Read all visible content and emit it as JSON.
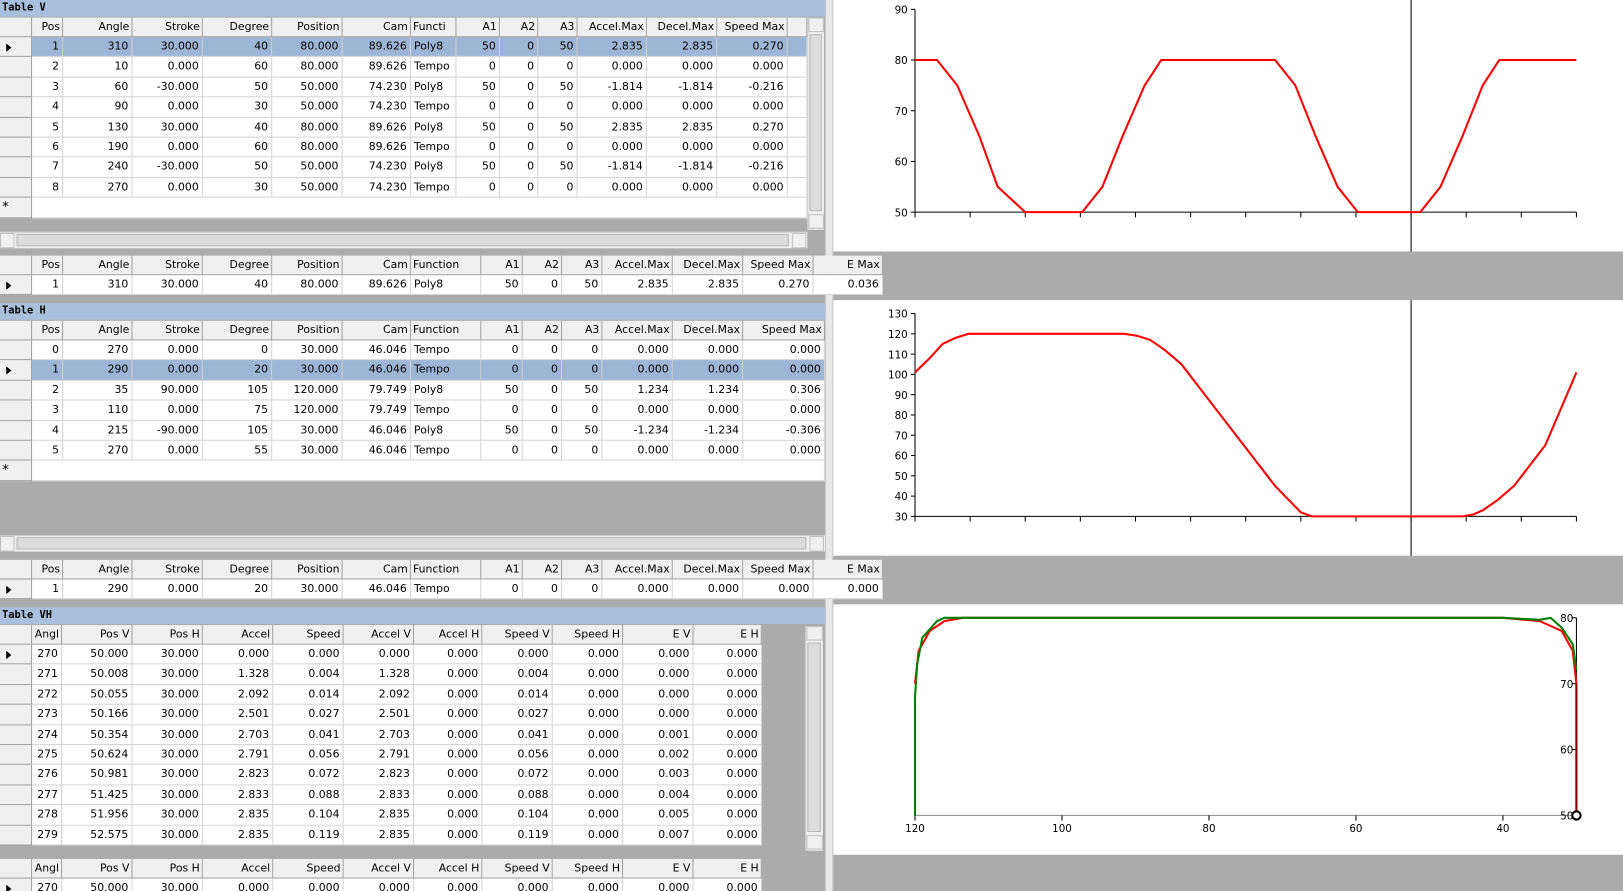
{
  "tables": {
    "v": {
      "title": "Table V",
      "new_row": "*",
      "current_row": 0,
      "highlight": true,
      "columns": [
        "Pos",
        "Angle",
        "Stroke",
        "Degree",
        "Position",
        "Cam",
        "Functi",
        "A1",
        "A2",
        "A3",
        "Accel.Max",
        "Decel.Max",
        "Speed Max"
      ],
      "rows": [
        [
          "1",
          "310",
          "30.000",
          "40",
          "80.000",
          "89.626",
          "Poly8",
          "50",
          "0",
          "50",
          "2.835",
          "2.835",
          "0.270"
        ],
        [
          "2",
          "10",
          "0.000",
          "60",
          "80.000",
          "89.626",
          "Tempo",
          "0",
          "0",
          "0",
          "0.000",
          "0.000",
          "0.000"
        ],
        [
          "3",
          "60",
          "-30.000",
          "50",
          "50.000",
          "74.230",
          "Poly8",
          "50",
          "0",
          "50",
          "-1.814",
          "-1.814",
          "-0.216"
        ],
        [
          "4",
          "90",
          "0.000",
          "30",
          "50.000",
          "74.230",
          "Tempo",
          "0",
          "0",
          "0",
          "0.000",
          "0.000",
          "0.000"
        ],
        [
          "5",
          "130",
          "30.000",
          "40",
          "80.000",
          "89.626",
          "Poly8",
          "50",
          "0",
          "50",
          "2.835",
          "2.835",
          "0.270"
        ],
        [
          "6",
          "190",
          "0.000",
          "60",
          "80.000",
          "89.626",
          "Tempo",
          "0",
          "0",
          "0",
          "0.000",
          "0.000",
          "0.000"
        ],
        [
          "7",
          "240",
          "-30.000",
          "50",
          "50.000",
          "74.230",
          "Poly8",
          "50",
          "0",
          "50",
          "-1.814",
          "-1.814",
          "-0.216"
        ],
        [
          "8",
          "270",
          "0.000",
          "30",
          "50.000",
          "74.230",
          "Tempo",
          "0",
          "0",
          "0",
          "0.000",
          "0.000",
          "0.000"
        ]
      ]
    },
    "v_summary": {
      "current_row": 0,
      "columns": [
        "Pos",
        "Angle",
        "Stroke",
        "Degree",
        "Position",
        "Cam",
        "Function",
        "A1",
        "A2",
        "A3",
        "Accel.Max",
        "Decel.Max",
        "Speed Max",
        "E Max"
      ],
      "rows": [
        [
          "1",
          "310",
          "30.000",
          "40",
          "80.000",
          "89.626",
          "Poly8",
          "50",
          "0",
          "50",
          "2.835",
          "2.835",
          "0.270",
          "0.036"
        ]
      ]
    },
    "h": {
      "title": "Table H",
      "new_row": "*",
      "current_row": 1,
      "highlight": true,
      "columns": [
        "Pos",
        "Angle",
        "Stroke",
        "Degree",
        "Position",
        "Cam",
        "Function",
        "A1",
        "A2",
        "A3",
        "Accel.Max",
        "Decel.Max",
        "Speed Max"
      ],
      "rows": [
        [
          "0",
          "270",
          "0.000",
          "0",
          "30.000",
          "46.046",
          "Tempo",
          "0",
          "0",
          "0",
          "0.000",
          "0.000",
          "0.000"
        ],
        [
          "1",
          "290",
          "0.000",
          "20",
          "30.000",
          "46.046",
          "Tempo",
          "0",
          "0",
          "0",
          "0.000",
          "0.000",
          "0.000"
        ],
        [
          "2",
          "35",
          "90.000",
          "105",
          "120.000",
          "79.749",
          "Poly8",
          "50",
          "0",
          "50",
          "1.234",
          "1.234",
          "0.306"
        ],
        [
          "3",
          "110",
          "0.000",
          "75",
          "120.000",
          "79.749",
          "Tempo",
          "0",
          "0",
          "0",
          "0.000",
          "0.000",
          "0.000"
        ],
        [
          "4",
          "215",
          "-90.000",
          "105",
          "30.000",
          "46.046",
          "Poly8",
          "50",
          "0",
          "50",
          "-1.234",
          "-1.234",
          "-0.306"
        ],
        [
          "5",
          "270",
          "0.000",
          "55",
          "30.000",
          "46.046",
          "Tempo",
          "0",
          "0",
          "0",
          "0.000",
          "0.000",
          "0.000"
        ]
      ]
    },
    "h_summary": {
      "current_row": 0,
      "columns": [
        "Pos",
        "Angle",
        "Stroke",
        "Degree",
        "Position",
        "Cam",
        "Function",
        "A1",
        "A2",
        "A3",
        "Accel.Max",
        "Decel.Max",
        "Speed Max",
        "E Max"
      ],
      "rows": [
        [
          "1",
          "290",
          "0.000",
          "20",
          "30.000",
          "46.046",
          "Tempo",
          "0",
          "0",
          "0",
          "0.000",
          "0.000",
          "0.000",
          "0.000"
        ]
      ]
    },
    "vh": {
      "title": "Table VH",
      "current_row": 0,
      "highlight": false,
      "columns": [
        "Angl",
        "Pos V",
        "Pos H",
        "Accel",
        "Speed",
        "Accel V",
        "Accel H",
        "Speed V",
        "Speed H",
        "E V",
        "E H"
      ],
      "rows": [
        [
          "270",
          "50.000",
          "30.000",
          "0.000",
          "0.000",
          "0.000",
          "0.000",
          "0.000",
          "0.000",
          "0.000",
          "0.000"
        ],
        [
          "271",
          "50.008",
          "30.000",
          "1.328",
          "0.004",
          "1.328",
          "0.000",
          "0.004",
          "0.000",
          "0.000",
          "0.000"
        ],
        [
          "272",
          "50.055",
          "30.000",
          "2.092",
          "0.014",
          "2.092",
          "0.000",
          "0.014",
          "0.000",
          "0.000",
          "0.000"
        ],
        [
          "273",
          "50.166",
          "30.000",
          "2.501",
          "0.027",
          "2.501",
          "0.000",
          "0.027",
          "0.000",
          "0.000",
          "0.000"
        ],
        [
          "274",
          "50.354",
          "30.000",
          "2.703",
          "0.041",
          "2.703",
          "0.000",
          "0.041",
          "0.000",
          "0.001",
          "0.000"
        ],
        [
          "275",
          "50.624",
          "30.000",
          "2.791",
          "0.056",
          "2.791",
          "0.000",
          "0.056",
          "0.000",
          "0.002",
          "0.000"
        ],
        [
          "276",
          "50.981",
          "30.000",
          "2.823",
          "0.072",
          "2.823",
          "0.000",
          "0.072",
          "0.000",
          "0.003",
          "0.000"
        ],
        [
          "277",
          "51.425",
          "30.000",
          "2.833",
          "0.088",
          "2.833",
          "0.000",
          "0.088",
          "0.000",
          "0.004",
          "0.000"
        ],
        [
          "278",
          "51.956",
          "30.000",
          "2.835",
          "0.104",
          "2.835",
          "0.000",
          "0.104",
          "0.000",
          "0.005",
          "0.000"
        ],
        [
          "279",
          "52.575",
          "30.000",
          "2.835",
          "0.119",
          "2.835",
          "0.000",
          "0.119",
          "0.000",
          "0.007",
          "0.000"
        ]
      ]
    },
    "vh_summary": {
      "current_row": 0,
      "columns": [
        "Angl",
        "Pos V",
        "Pos H",
        "Accel",
        "Speed",
        "Accel V",
        "Accel H",
        "Speed V",
        "Speed H",
        "E V",
        "E H"
      ],
      "rows": [
        [
          "270",
          "50.000",
          "30.000",
          "0.000",
          "0.000",
          "0.000",
          "0.000",
          "0.000",
          "0.000",
          "0.000",
          "0.000"
        ]
      ]
    }
  },
  "chart_data": [
    {
      "type": "line",
      "xlim": [
        0,
        360
      ],
      "xticks": [
        0,
        30,
        60,
        90,
        120,
        150,
        180,
        210,
        240,
        270,
        300,
        330,
        360
      ],
      "xtick_labels": false,
      "ylim": [
        50,
        90
      ],
      "yticks": [
        50,
        60,
        70,
        80,
        90
      ],
      "y_axis_side": "left",
      "cursor_x": 270,
      "series": [
        {
          "color": "#ff0000",
          "x": [
            0,
            12,
            23,
            35,
            45,
            60,
            91,
            102,
            113,
            125,
            134,
            196,
            207,
            218,
            230,
            241,
            275,
            286,
            298,
            309,
            318,
            360
          ],
          "values": [
            80,
            80,
            75,
            65,
            55,
            50,
            50,
            55,
            65,
            75,
            80,
            80,
            75,
            65,
            55,
            50,
            50,
            55,
            65,
            75,
            80,
            80
          ]
        }
      ]
    },
    {
      "type": "line",
      "xlim": [
        0,
        360
      ],
      "xticks": [
        0,
        30,
        60,
        90,
        120,
        150,
        180,
        210,
        240,
        270,
        300,
        330,
        360
      ],
      "xtick_labels": false,
      "ylim": [
        30,
        130
      ],
      "yticks": [
        30,
        40,
        50,
        60,
        70,
        80,
        90,
        100,
        110,
        120,
        130
      ],
      "y_axis_side": "left",
      "cursor_x": 270,
      "series": [
        {
          "color": "#ff0000",
          "x": [
            0,
            8,
            15,
            22,
            29,
            114,
            121,
            128,
            136,
            145,
            162,
            179,
            196,
            210,
            216,
            298,
            304,
            309,
            317,
            326,
            343,
            360
          ],
          "values": [
            101,
            108,
            115,
            118,
            120,
            120,
            119,
            117,
            112,
            105,
            85,
            65,
            45,
            32,
            30,
            30,
            31,
            33,
            38,
            45,
            65,
            101
          ]
        }
      ]
    },
    {
      "type": "line",
      "xlim": [
        120,
        30
      ],
      "xticks": [
        120,
        100,
        80,
        60,
        40
      ],
      "xtick_labels": true,
      "ylim": [
        50,
        80
      ],
      "yticks": [
        50,
        60,
        70,
        80
      ],
      "y_axis_side": "right",
      "marker": {
        "x": 30,
        "y": 50
      },
      "series": [
        {
          "color": "#ff0000",
          "x": [
            30,
            30,
            30.5,
            32,
            35,
            40,
            110,
            113.5,
            116,
            118,
            119.5,
            120
          ],
          "values": [
            50,
            70,
            75,
            78,
            79.5,
            80,
            80,
            80,
            79.5,
            78,
            75,
            70
          ]
        },
        {
          "color": "#008000",
          "x": [
            120,
            120,
            119.7,
            119,
            117,
            116,
            40,
            35,
            33.5,
            32,
            30.5,
            30
          ],
          "values": [
            50,
            68,
            73,
            77,
            79.5,
            80,
            80,
            79.7,
            80,
            78.5,
            76,
            72
          ]
        }
      ]
    }
  ]
}
